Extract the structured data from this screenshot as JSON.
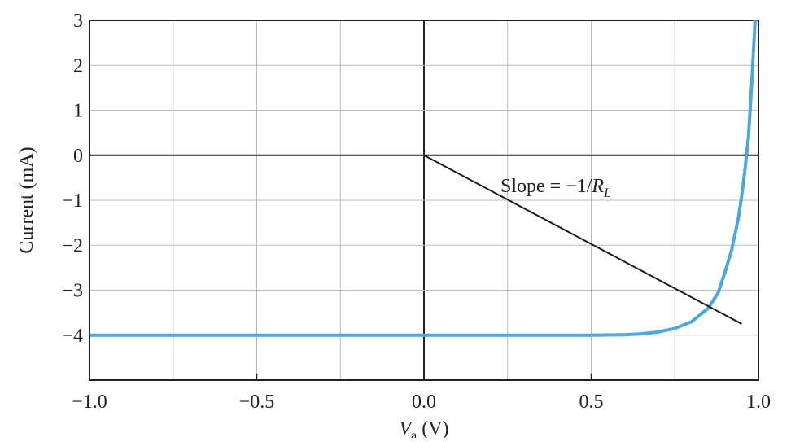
{
  "chart_data": {
    "type": "line",
    "ylabel": "Current (mA)",
    "xlabel": {
      "main": "V",
      "sub": "a",
      "rest": " (V)"
    },
    "annotation": {
      "main": "Slope = −1/",
      "italic": "R",
      "sub": "L"
    },
    "xlim": [
      -1.0,
      1.0
    ],
    "xticks": [
      {
        "value": -1.0,
        "label": "−1.0"
      },
      {
        "value": -0.5,
        "label": "−0.5"
      },
      {
        "value": 0.0,
        "label": "0.0"
      },
      {
        "value": 0.5,
        "label": "0.5"
      },
      {
        "value": 1.0,
        "label": "1.0"
      }
    ],
    "xgrid": [
      -0.75,
      -0.25,
      0.25,
      0.75
    ],
    "ylim": [
      -5,
      3
    ],
    "yticks": [
      3,
      2,
      1,
      0,
      {
        "value": -1,
        "label": "−1"
      },
      {
        "value": -2,
        "label": "−2"
      },
      {
        "value": -3,
        "label": "−3"
      },
      {
        "value": -4,
        "label": "−4"
      }
    ],
    "ygrid": [
      -5
    ],
    "grid": true,
    "series": [
      {
        "color": "#4aa8e0",
        "x": [
          -1.0,
          -0.5,
          0.0,
          0.5,
          0.6,
          0.65,
          0.7,
          0.75,
          0.8,
          0.85,
          0.88,
          0.9,
          0.92,
          0.94,
          0.95,
          0.96,
          0.97,
          0.98,
          0.99
        ],
        "values": [
          -4.0,
          -4.0,
          -4.0,
          -4.0,
          -3.99,
          -3.97,
          -3.93,
          -3.85,
          -3.7,
          -3.4,
          -3.05,
          -2.6,
          -2.1,
          -1.4,
          -0.9,
          -0.3,
          0.4,
          1.6,
          3.0
        ]
      },
      {
        "color": "#1a1a1a",
        "x": [
          0.0,
          0.95
        ],
        "values": [
          0.0,
          -3.75
        ]
      }
    ]
  }
}
